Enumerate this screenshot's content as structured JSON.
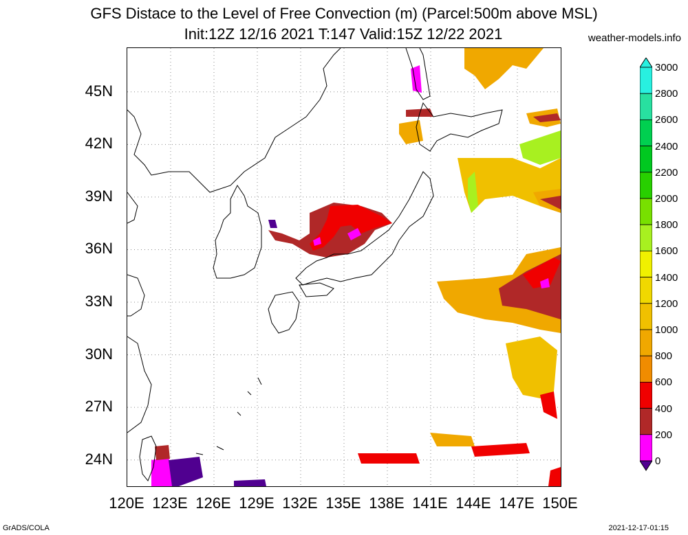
{
  "title": {
    "line1": "GFS Distace to the Level of Free Convection (m) (Parcel:500m above MSL)",
    "line2": "Init:12Z 12/16 2021 T:147 Valid:15Z 12/22 2021",
    "site": "weather-models.info"
  },
  "axes": {
    "lat_labels": [
      "45N",
      "42N",
      "39N",
      "36N",
      "33N",
      "30N",
      "27N",
      "24N"
    ],
    "lon_labels": [
      "120E",
      "123E",
      "126E",
      "129E",
      "132E",
      "135E",
      "138E",
      "141E",
      "144E",
      "147E",
      "150E"
    ],
    "lat_range": [
      22.5,
      47.5
    ],
    "lon_range": [
      120,
      150
    ],
    "grid": "dotted"
  },
  "colorbar": {
    "labels": [
      "3000",
      "2800",
      "2600",
      "2400",
      "2200",
      "2000",
      "1800",
      "1600",
      "1400",
      "1200",
      "1000",
      "800",
      "600",
      "400",
      "200",
      "0"
    ],
    "colors": [
      "#28f0e0",
      "#28e0a0",
      "#00d050",
      "#00c820",
      "#28d000",
      "#78e000",
      "#a8f020",
      "#f0f000",
      "#f0d800",
      "#f0c000",
      "#f0a800",
      "#f08c00",
      "#f00000",
      "#b02828",
      "#ff00ff",
      "#500090"
    ]
  },
  "footer": {
    "left": "GrADS/COLA",
    "right": "2021-12-17-01:15"
  }
}
